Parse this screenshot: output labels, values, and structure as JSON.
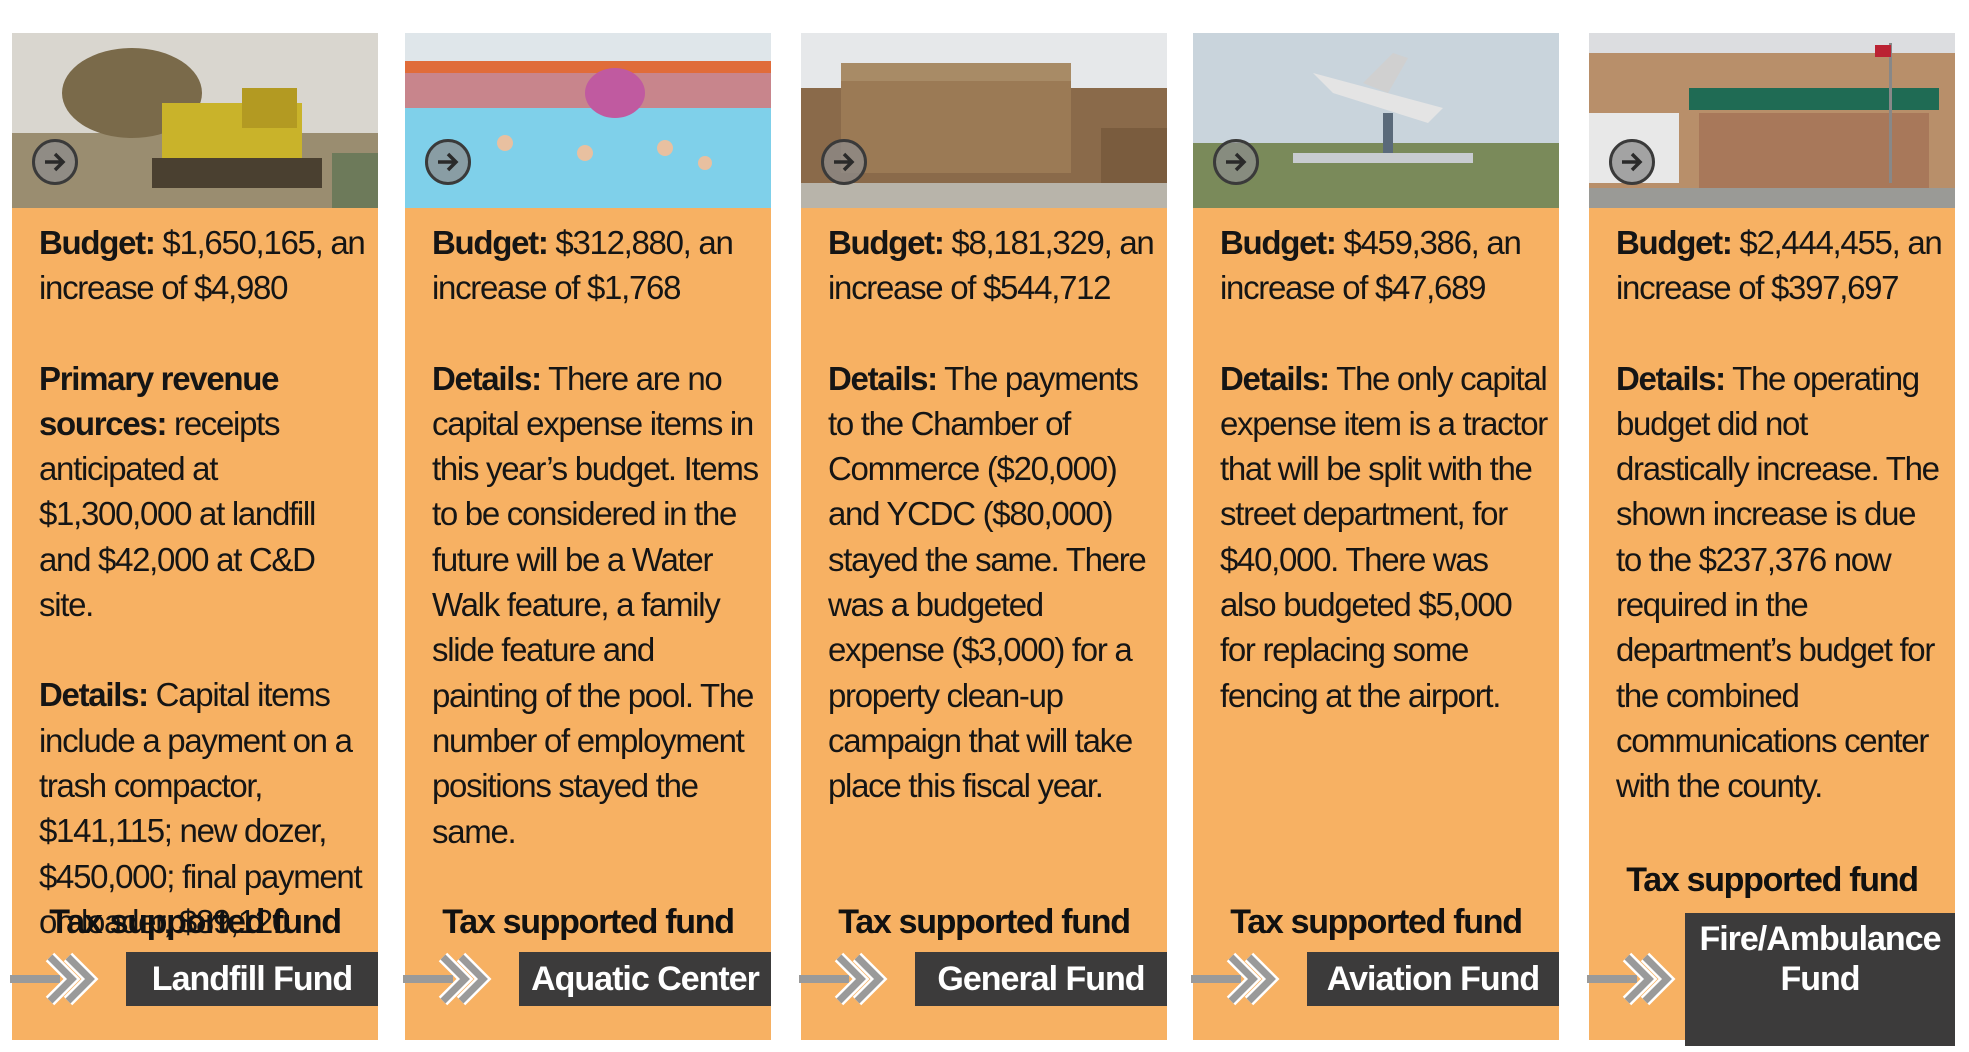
{
  "panels": [
    {
      "photo": "landfill-bulldozer",
      "budget_label": "Budget:",
      "budget_text": " $1,650,165, an increase of $4,980",
      "revenue_label": "Primary revenue sources:",
      "revenue_text": " receipts anticipated at $1,300,000 at landfill and $42,000 at C&D site.",
      "details_label": "Details:",
      "details_text": " Capital items include a payment on a trash compactor, $141,115; new dozer, $450,000; final payment on loader, $89,120",
      "tax": "Tax supported fund",
      "fund": "Landfill Fund"
    },
    {
      "photo": "aquatic-center-pool",
      "budget_label": "Budget:",
      "budget_text": " $312,880, an increase of $1,768",
      "details_label": "Details:",
      "details_text": " There are no capital expense items in this year’s budget. Items to be considered in the future will be a Water Walk feature, a family slide feature and painting of the pool. The number of employment positions stayed the same.",
      "tax": "Tax supported fund",
      "fund": "Aquatic Center"
    },
    {
      "photo": "city-office-building",
      "budget_label": "Budget:",
      "budget_text": " $8,181,329, an increase of $544,712",
      "details_label": "Details:",
      "details_text": " The payments to the Chamber of Commerce ($20,000) and YCDC ($80,000) stayed the same. There was a budgeted expense ($3,000) for a property clean-up campaign that will take place this fiscal year.",
      "tax": "Tax supported fund",
      "fund": "General Fund"
    },
    {
      "photo": "airport-jet-monument",
      "budget_label": "Budget:",
      "budget_text": " $459,386, an increase of $47,689",
      "details_label": "Details:",
      "details_text": " The only capital expense item is a tractor that will be split with the street department, for $40,000. There was also budgeted $5,000 for replacing some fencing at the airport.",
      "tax": "Tax supported fund",
      "fund": "Aviation Fund"
    },
    {
      "photo": "fire-station-building",
      "budget_label": "Budget:",
      "budget_text": " $2,444,455, an increase of $397,697",
      "details_label": "Details:",
      "details_text": " The operating budget did not drastically increase. The shown increase is due to the $237,376 now required in the department’s budget for the combined communications center with the county.",
      "tax": "Tax supported fund",
      "fund": "Fire/Ambulance Fund"
    }
  ],
  "colors": {
    "panel": "#f7b163",
    "fund_bg": "#3c3b3b",
    "chevron": "#9a9a9a"
  }
}
